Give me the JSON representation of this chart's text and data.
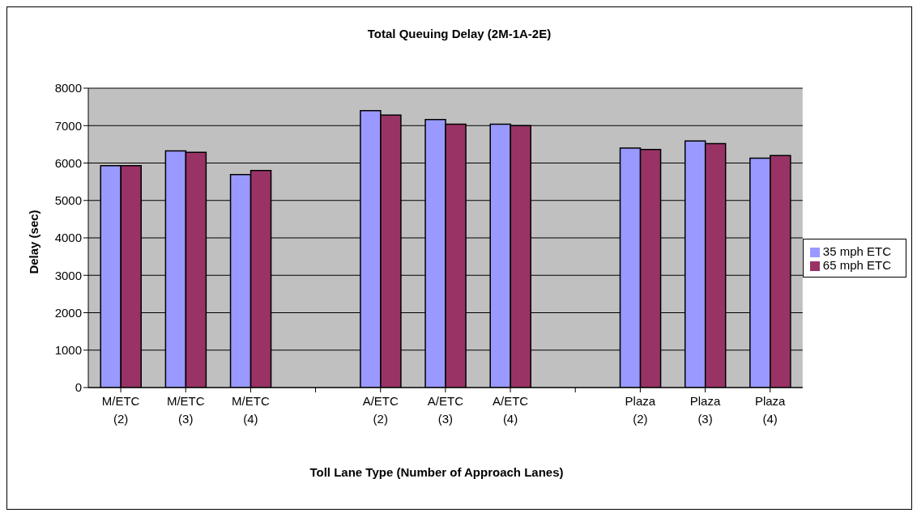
{
  "chart_data": {
    "type": "bar",
    "title": "Total Queuing Delay (2M-1A-2E)",
    "xlabel": "Toll Lane Type (Number of Approach Lanes)",
    "ylabel": "Delay (sec)",
    "categories": [
      "M/ETC (2)",
      "M/ETC (3)",
      "M/ETC (4)",
      null,
      "A/ETC (2)",
      "A/ETC (3)",
      "A/ETC (4)",
      null,
      "Plaza (2)",
      "Plaza (3)",
      "Plaza (4)"
    ],
    "series": [
      {
        "name": "35 mph ETC",
        "color": "#9999ff",
        "values": [
          5930,
          6325,
          5690,
          null,
          7400,
          7160,
          7040,
          null,
          6400,
          6590,
          6130
        ]
      },
      {
        "name": "65 mph ETC",
        "color": "#993366",
        "values": [
          5930,
          6285,
          5800,
          null,
          7280,
          7040,
          7000,
          null,
          6360,
          6520,
          6200
        ]
      }
    ],
    "ylim": [
      0,
      8000
    ],
    "yticks": [
      0,
      1000,
      2000,
      3000,
      4000,
      5000,
      6000,
      7000,
      8000
    ],
    "grid": "y",
    "legend": "right"
  }
}
